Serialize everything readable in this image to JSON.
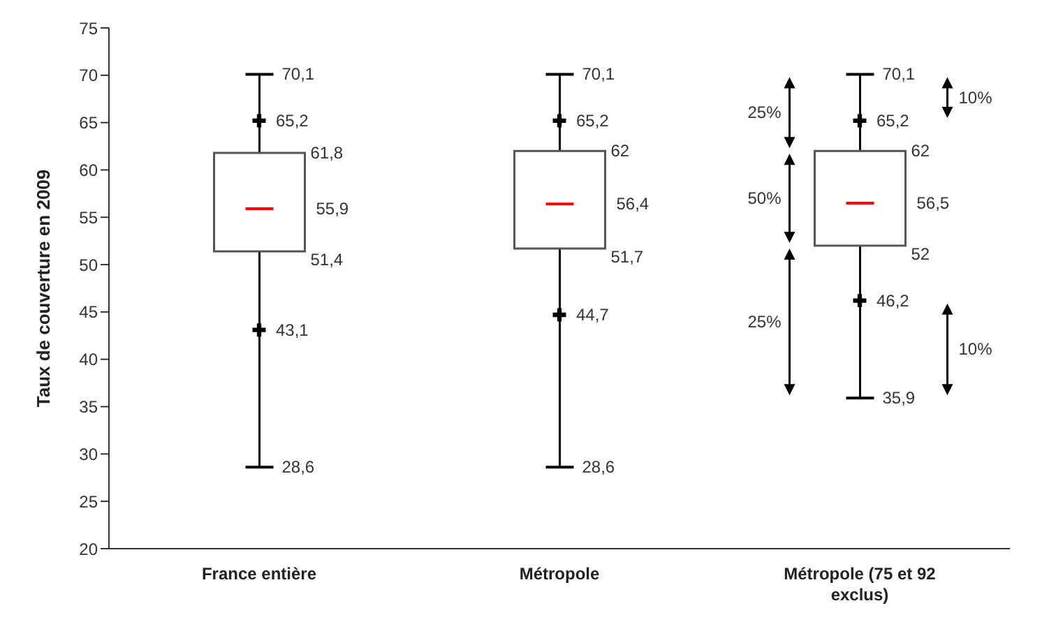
{
  "chart_data": {
    "type": "box",
    "ylabel": "Taux de couverture en 2009",
    "categories": [
      "France entière",
      "Métropole",
      "Métropole (75 et 92 exclus)"
    ],
    "ylim": [
      20,
      75
    ],
    "yticks": [
      20,
      25,
      30,
      35,
      40,
      45,
      50,
      55,
      60,
      65,
      70,
      75
    ],
    "marker": "cross",
    "series": [
      {
        "type": "box",
        "color": "#ffffff",
        "boxes": [
          {
            "low": 28.6,
            "q1": 51.4,
            "median": 55.9,
            "q3": 61.8,
            "high": 70.1
          },
          {
            "low": 28.6,
            "q1": 51.7,
            "median": 56.4,
            "q3": 62,
            "high": 70.1
          },
          {
            "low": 35.9,
            "q1": 52,
            "median": 56.5,
            "q3": 62,
            "high": 70.1
          }
        ]
      },
      {
        "type": "scatter",
        "color": "#000000",
        "x": [
          "France entière",
          "Métropole",
          "Métropole (75 et 92 exclus)"
        ],
        "values": [
          43.1,
          44.7,
          46.2
        ],
        "value_labels": [
          "43,1",
          "44,7",
          "46,2"
        ]
      },
      {
        "type": "scatter",
        "color": "#000000",
        "x": [
          "France entière",
          "Métropole",
          "Métropole (75 et 92 exclus)"
        ],
        "values": [
          65.2,
          65.2,
          65.2
        ],
        "value_labels": [
          "65,2",
          "65,2",
          "65,2"
        ]
      }
    ],
    "annotations": [
      "70,1",
      "61,8",
      "55,9",
      "51,4",
      "28,6",
      "70,1",
      "62",
      "56,4",
      "51,7",
      "28,6",
      "70,1",
      "62",
      "56,5",
      "52",
      "35,9",
      "25%",
      "50%",
      "25%",
      "10%",
      "10%"
    ]
  }
}
